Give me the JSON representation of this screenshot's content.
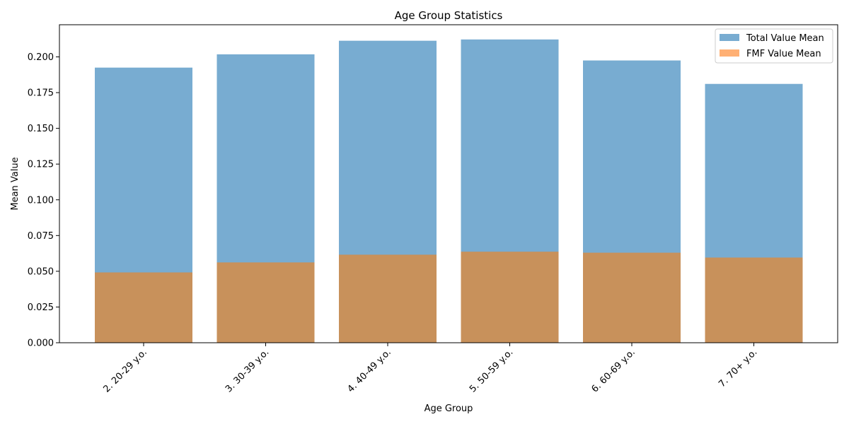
{
  "chart_data": {
    "type": "bar",
    "title": "Age Group Statistics",
    "xlabel": "Age Group",
    "ylabel": "Mean Value",
    "categories": [
      "2. 20-29 y.o.",
      "3. 30-39 y.o.",
      "4. 40-49 y.o.",
      "5. 50-59 y.o.",
      "6. 60-69 y.o.",
      "7. 70+ y.o."
    ],
    "series": [
      {
        "name": "Total Value Mean",
        "values": [
          0.1925,
          0.2018,
          0.2113,
          0.2122,
          0.1975,
          0.1811
        ],
        "color": "#78acd1"
      },
      {
        "name": "FMF Value Mean",
        "values": [
          0.0492,
          0.0562,
          0.0616,
          0.0637,
          0.063,
          0.0596
        ],
        "color": "#c8915b"
      }
    ],
    "legend_colors": [
      "#78acd1",
      "#ffb074"
    ],
    "ylim": [
      0,
      0.2225
    ],
    "yticks": [
      "0.000",
      "0.025",
      "0.050",
      "0.075",
      "0.100",
      "0.125",
      "0.150",
      "0.175",
      "0.200"
    ],
    "grid": false,
    "legend_position": "top-right",
    "overlay": true
  }
}
